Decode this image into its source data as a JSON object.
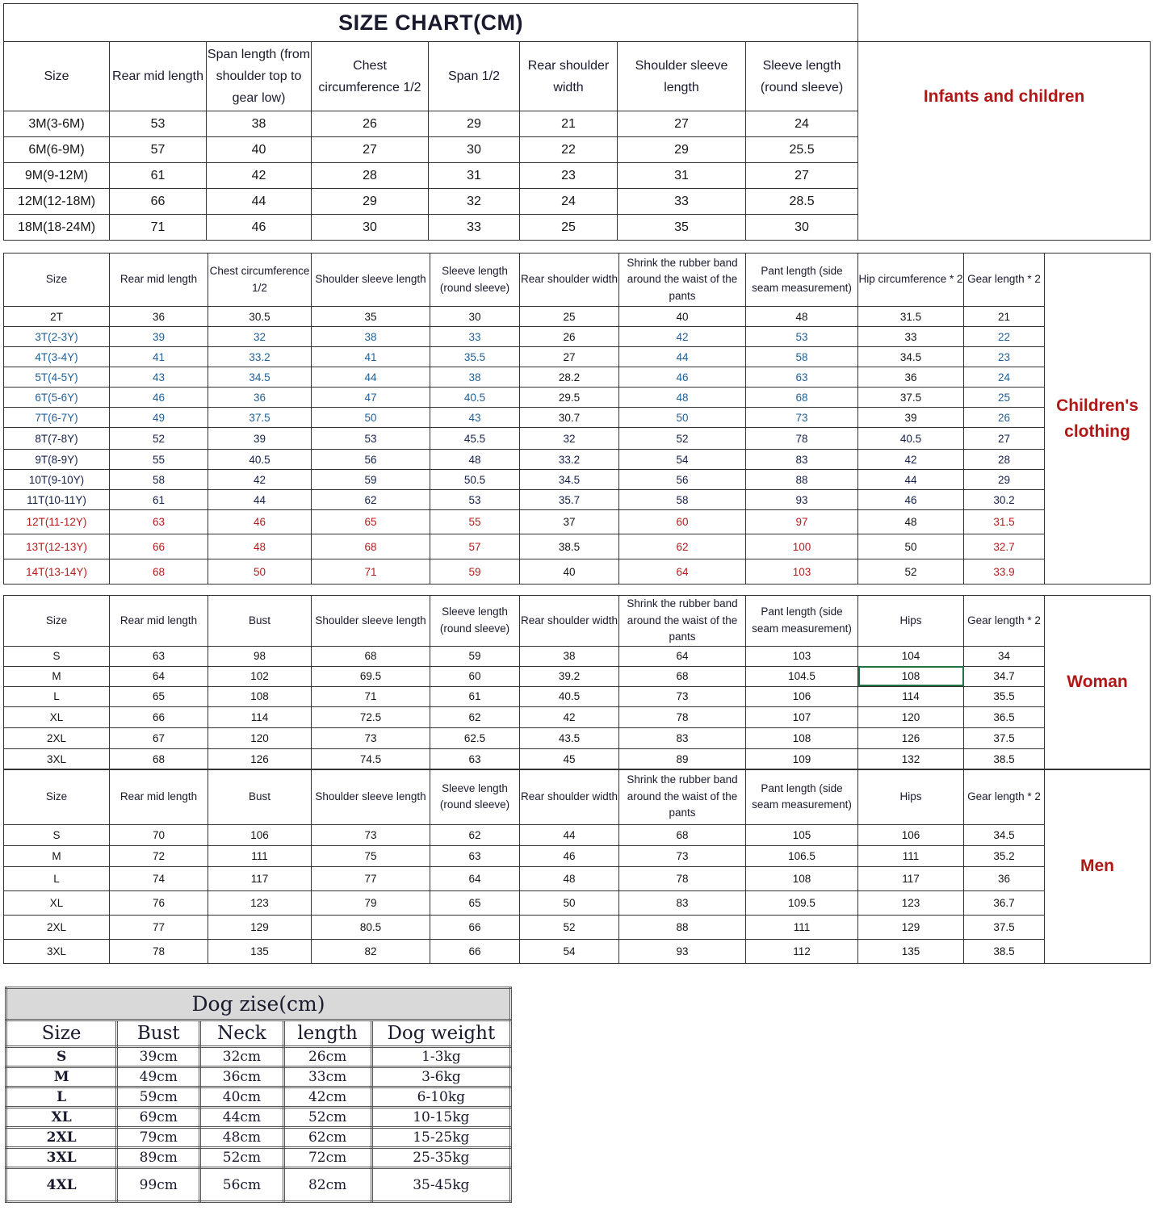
{
  "title": "SIZE CHART(CM)",
  "infants": {
    "label": "Infants and children",
    "headers": [
      "Size",
      "Rear mid length",
      "Span length (from shoulder top to gear low)",
      "Chest circumference 1/2",
      "Span 1/2",
      "Rear shoulder width",
      "Shoulder sleeve length",
      "Sleeve length (round sleeve)"
    ],
    "rows": [
      [
        "3M(3-6M)",
        "53",
        "38",
        "26",
        "29",
        "21",
        "27",
        "24"
      ],
      [
        "6M(6-9M)",
        "57",
        "40",
        "27",
        "30",
        "22",
        "29",
        "25.5"
      ],
      [
        "9M(9-12M)",
        "61",
        "42",
        "28",
        "31",
        "23",
        "31",
        "27"
      ],
      [
        "12M(12-18M)",
        "66",
        "44",
        "29",
        "32",
        "24",
        "33",
        "28.5"
      ],
      [
        "18M(18-24M)",
        "71",
        "46",
        "30",
        "33",
        "25",
        "35",
        "30"
      ]
    ]
  },
  "children": {
    "label": "Children's clothing",
    "headers": [
      "Size",
      "Rear mid length",
      "Chest circumference 1/2",
      "Shoulder sleeve length",
      "Sleeve length (round sleeve)",
      "Rear shoulder width",
      "Shrink the rubber band around the waist of the pants",
      "Pant length (side seam measurement)",
      "Hip circumference * 2",
      "Gear length * 2"
    ],
    "row_tones": [
      "black",
      "blue",
      "blue",
      "blue",
      "blue",
      "blue",
      "navy",
      "navy",
      "navy",
      "navy",
      "red",
      "red",
      "red"
    ],
    "tone_colors": {
      "blue": "#1f5f96",
      "navy": "#14204a",
      "red": "#b41c1c",
      "black": "#151515"
    },
    "rows": [
      [
        "2T",
        "36",
        "30.5",
        "35",
        "30",
        "25",
        "40",
        "48",
        "31.5",
        "21"
      ],
      [
        "3T(2-3Y)",
        "39",
        "32",
        "38",
        "33",
        "26",
        "42",
        "53",
        "33",
        "22"
      ],
      [
        "4T(3-4Y)",
        "41",
        "33.2",
        "41",
        "35.5",
        "27",
        "44",
        "58",
        "34.5",
        "23"
      ],
      [
        "5T(4-5Y)",
        "43",
        "34.5",
        "44",
        "38",
        "28.2",
        "46",
        "63",
        "36",
        "24"
      ],
      [
        "6T(5-6Y)",
        "46",
        "36",
        "47",
        "40.5",
        "29.5",
        "48",
        "68",
        "37.5",
        "25"
      ],
      [
        "7T(6-7Y)",
        "49",
        "37.5",
        "50",
        "43",
        "30.7",
        "50",
        "73",
        "39",
        "26"
      ],
      [
        "8T(7-8Y)",
        "52",
        "39",
        "53",
        "45.5",
        "32",
        "52",
        "78",
        "40.5",
        "27"
      ],
      [
        "9T(8-9Y)",
        "55",
        "40.5",
        "56",
        "48",
        "33.2",
        "54",
        "83",
        "42",
        "28"
      ],
      [
        "10T(9-10Y)",
        "58",
        "42",
        "59",
        "50.5",
        "34.5",
        "56",
        "88",
        "44",
        "29"
      ],
      [
        "11T(10-11Y)",
        "61",
        "44",
        "62",
        "53",
        "35.7",
        "58",
        "93",
        "46",
        "30.2"
      ],
      [
        "12T(11-12Y)",
        "63",
        "46",
        "65",
        "55",
        "37",
        "60",
        "97",
        "48",
        "31.5"
      ],
      [
        "13T(12-13Y)",
        "66",
        "48",
        "68",
        "57",
        "38.5",
        "62",
        "100",
        "50",
        "32.7"
      ],
      [
        "14T(13-14Y)",
        "68",
        "50",
        "71",
        "59",
        "40",
        "64",
        "103",
        "52",
        "33.9"
      ]
    ]
  },
  "woman": {
    "label": "Woman",
    "headers": [
      "Size",
      "Rear mid length",
      "Bust",
      "Shoulder sleeve length",
      "Sleeve length (round sleeve)",
      "Rear shoulder width",
      "Shrink the rubber band around the waist of the pants",
      "Pant length (side seam measurement)",
      "Hips",
      "Gear length * 2"
    ],
    "rows": [
      [
        "S",
        "63",
        "98",
        "68",
        "59",
        "38",
        "64",
        "103",
        "104",
        "34"
      ],
      [
        "M",
        "64",
        "102",
        "69.5",
        "60",
        "39.2",
        "68",
        "104.5",
        "108",
        "34.7"
      ],
      [
        "L",
        "65",
        "108",
        "71",
        "61",
        "40.5",
        "73",
        "106",
        "114",
        "35.5"
      ],
      [
        "XL",
        "66",
        "114",
        "72.5",
        "62",
        "42",
        "78",
        "107",
        "120",
        "36.5"
      ],
      [
        "2XL",
        "67",
        "120",
        "73",
        "62.5",
        "43.5",
        "83",
        "108",
        "126",
        "37.5"
      ],
      [
        "3XL",
        "68",
        "126",
        "74.5",
        "63",
        "45",
        "89",
        "109",
        "132",
        "38.5"
      ]
    ]
  },
  "men": {
    "label": "Men",
    "headers": [
      "Size",
      "Rear mid length",
      "Bust",
      "Shoulder sleeve length",
      "Sleeve length (round sleeve)",
      "Rear shoulder width",
      "Shrink the rubber band around the waist of the pants",
      "Pant length (side seam measurement)",
      "Hips",
      "Gear length * 2"
    ],
    "rows": [
      [
        "S",
        "70",
        "106",
        "73",
        "62",
        "44",
        "68",
        "105",
        "106",
        "34.5"
      ],
      [
        "M",
        "72",
        "111",
        "75",
        "63",
        "46",
        "73",
        "106.5",
        "111",
        "35.2"
      ],
      [
        "L",
        "74",
        "117",
        "77",
        "64",
        "48",
        "78",
        "108",
        "117",
        "36"
      ],
      [
        "XL",
        "76",
        "123",
        "79",
        "65",
        "50",
        "83",
        "109.5",
        "123",
        "36.7"
      ],
      [
        "2XL",
        "77",
        "129",
        "80.5",
        "66",
        "52",
        "88",
        "111",
        "129",
        "37.5"
      ],
      [
        "3XL",
        "78",
        "135",
        "82",
        "66",
        "54",
        "93",
        "112",
        "135",
        "38.5"
      ]
    ]
  },
  "dog": {
    "title": "Dog zise(cm)",
    "headers": [
      "Size",
      "Bust",
      "Neck",
      "length",
      "Dog weight"
    ],
    "rows": [
      [
        "S",
        "39cm",
        "32cm",
        "26cm",
        "1-3kg"
      ],
      [
        "M",
        "49cm",
        "36cm",
        "33cm",
        "3-6kg"
      ],
      [
        "L",
        "59cm",
        "40cm",
        "42cm",
        "6-10kg"
      ],
      [
        "XL",
        "69cm",
        "44cm",
        "52cm",
        "10-15kg"
      ],
      [
        "2XL",
        "79cm",
        "48cm",
        "62cm",
        "15-25kg"
      ],
      [
        "3XL",
        "89cm",
        "52cm",
        "72cm",
        "25-35kg"
      ],
      [
        "4XL",
        "99cm",
        "56cm",
        "82cm",
        "35-45kg"
      ]
    ]
  },
  "colors": {
    "label_red": "#b01818",
    "selected_cell_border": "#217346"
  }
}
